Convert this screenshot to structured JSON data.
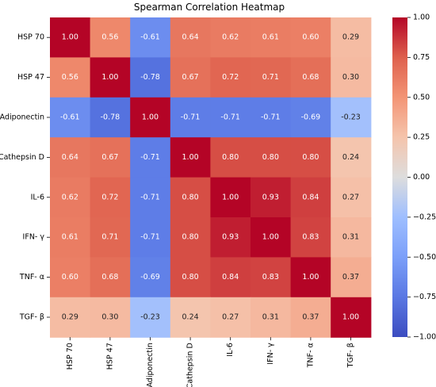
{
  "chart_data": {
    "type": "heatmap",
    "title": "Spearman Correlation Heatmap",
    "row_labels": [
      "HSP 70",
      "HSP 47",
      "Adiponectin",
      "Cathepsin D",
      "IL-6",
      "IFN- γ",
      "TNF- α",
      "TGF- β"
    ],
    "col_labels": [
      "HSP 70",
      "HSP 47",
      "Adiponectin",
      "Cathepsin D",
      "IL-6",
      "IFN- γ",
      "TNF- α",
      "TGF- β"
    ],
    "values": [
      [
        1.0,
        0.56,
        -0.61,
        0.64,
        0.62,
        0.61,
        0.6,
        0.29
      ],
      [
        0.56,
        1.0,
        -0.78,
        0.67,
        0.72,
        0.71,
        0.68,
        0.3
      ],
      [
        -0.61,
        -0.78,
        1.0,
        -0.71,
        -0.71,
        -0.71,
        -0.69,
        -0.23
      ],
      [
        0.64,
        0.67,
        -0.71,
        1.0,
        0.8,
        0.8,
        0.8,
        0.24
      ],
      [
        0.62,
        0.72,
        -0.71,
        0.8,
        1.0,
        0.93,
        0.84,
        0.27
      ],
      [
        0.61,
        0.71,
        -0.71,
        0.8,
        0.93,
        1.0,
        0.83,
        0.31
      ],
      [
        0.6,
        0.68,
        -0.69,
        0.8,
        0.84,
        0.83,
        1.0,
        0.37
      ],
      [
        0.29,
        0.3,
        -0.23,
        0.24,
        0.27,
        0.31,
        0.37,
        1.0
      ]
    ],
    "value_format": "0.00",
    "colormap": "coolwarm",
    "vmin": -1.0,
    "vmax": 1.0,
    "colorbar": {
      "ticks": [
        "1.00",
        "0.75",
        "0.50",
        "0.25",
        "0.00",
        "−0.25",
        "−0.50",
        "−0.75",
        "−1.00"
      ]
    },
    "colors": {
      "low": "#3b4cc0",
      "mid": "#dddddd",
      "high": "#b40426"
    }
  }
}
